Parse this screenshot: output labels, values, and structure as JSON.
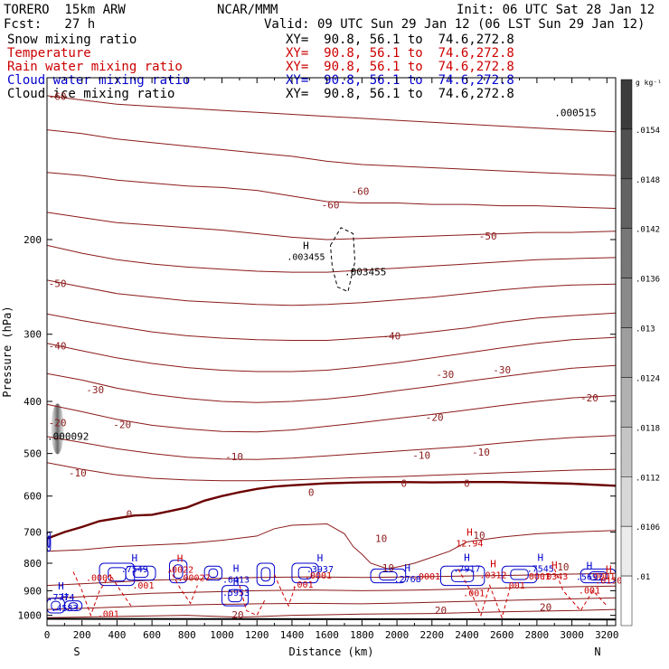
{
  "header": {
    "model": "TORERO  15km ARW",
    "center": "NCAR/MMM",
    "init": "Init: 06 UTC Sat 28 Jan 12",
    "fcst": "Fcst:   27 h",
    "valid": "Valid: 09 UTC Sun 29 Jan 12 (06 LST Sun 29 Jan 12)"
  },
  "fields": [
    {
      "name": "Snow mixing ratio",
      "xy": "XY=  90.8, 56.1 to  74.6,272.8",
      "color": "#000000",
      "xycolor": "#000000"
    },
    {
      "name": "Temperature",
      "xy": "XY=  90.8, 56.1 to  74.6,272.8",
      "color": "#cc0000",
      "xycolor": "#cc0000"
    },
    {
      "name": "Rain water mixing ratio",
      "xy": "XY=  90.8, 56.1 to  74.6,272.8",
      "color": "#cc0000",
      "xycolor": "#cc0000"
    },
    {
      "name": "Cloud water mixing ratio",
      "xy": "XY=  90.8, 56.1 to  74.6,272.8",
      "color": "#0000cc",
      "xycolor": "#0000cc"
    },
    {
      "name": "Cloud ice mixing ratio",
      "xy": "XY=  90.8, 56.1 to  74.6,272.8",
      "color": "#000000",
      "xycolor": "#000000"
    }
  ],
  "chart_data": {
    "type": "cross-section",
    "xlabel": "Distance (km)",
    "ylabel": "Pressure (hPa)",
    "x_ticks": [
      0,
      100,
      200,
      300,
      400,
      500,
      600,
      700,
      800,
      900,
      1000,
      1100,
      1200,
      1300,
      1400,
      1500,
      1600,
      1700,
      1800,
      1900,
      2000,
      2100,
      2200,
      2300,
      2400,
      2500,
      2600,
      2700,
      2800,
      2900,
      3000,
      3100,
      3200
    ],
    "x_tick_labels": [
      "0",
      "200",
      "400",
      "600",
      "800",
      "1000",
      "1200",
      "1400",
      "1600",
      "1800",
      "2000",
      "2200",
      "2400",
      "2600",
      "2800",
      "3000",
      "3200"
    ],
    "xlim": [
      0,
      3250
    ],
    "y_ticks": [
      200,
      300,
      400,
      500,
      600,
      700,
      800,
      900,
      1000
    ],
    "ylim": [
      100,
      1045
    ],
    "y_scale": "log",
    "endpoint_labels": {
      "left": "S",
      "right": "N"
    },
    "colorbar": {
      "unit": "g kg⁻¹",
      "tick_labels": [
        ".0154",
        ".0148",
        ".0142",
        ".0136",
        ".013",
        ".0124",
        ".0118",
        ".0112",
        ".0106",
        ".01"
      ]
    },
    "temperature_labels": [
      {
        "x": 60,
        "p": 110,
        "text": "-60"
      },
      {
        "x": 1620,
        "p": 175,
        "text": "-60"
      },
      {
        "x": 1790,
        "p": 165,
        "text": "-60"
      },
      {
        "x": 60,
        "p": 245,
        "text": "-50"
      },
      {
        "x": 2520,
        "p": 200,
        "text": "-50"
      },
      {
        "x": 60,
        "p": 320,
        "text": "-40"
      },
      {
        "x": 1970,
        "p": 307,
        "text": "-40"
      },
      {
        "x": 275,
        "p": 386,
        "text": "-30"
      },
      {
        "x": 2275,
        "p": 362,
        "text": "-30"
      },
      {
        "x": 2600,
        "p": 355,
        "text": "-30"
      },
      {
        "x": 60,
        "p": 445,
        "text": "-20"
      },
      {
        "x": 430,
        "p": 448,
        "text": "-20"
      },
      {
        "x": 2215,
        "p": 435,
        "text": "-20"
      },
      {
        "x": 3100,
        "p": 400,
        "text": "-20"
      },
      {
        "x": 175,
        "p": 552,
        "text": "-10"
      },
      {
        "x": 1070,
        "p": 514,
        "text": "-10"
      },
      {
        "x": 2140,
        "p": 511,
        "text": "-10"
      },
      {
        "x": 2480,
        "p": 505,
        "text": "-10"
      },
      {
        "x": 470,
        "p": 658,
        "text": "0"
      },
      {
        "x": 1510,
        "p": 600,
        "text": "0"
      },
      {
        "x": 2040,
        "p": 577,
        "text": "0"
      },
      {
        "x": 2400,
        "p": 577,
        "text": "0"
      },
      {
        "x": 1910,
        "p": 731,
        "text": "10"
      },
      {
        "x": 1950,
        "p": 829,
        "text": "10"
      },
      {
        "x": 2470,
        "p": 720,
        "text": "10"
      },
      {
        "x": 2950,
        "p": 825,
        "text": "10"
      },
      {
        "x": 1090,
        "p": 1013,
        "text": "20"
      },
      {
        "x": 2250,
        "p": 993,
        "text": "20"
      },
      {
        "x": 2850,
        "p": 980,
        "text": "20"
      }
    ],
    "snow_labels": [
      {
        "x": 2900,
        "p": 118,
        "text": ".000515"
      },
      {
        "x": 1700,
        "p": 233,
        "text": ".003455"
      },
      {
        "x": 0,
        "p": 472,
        "text": ".000092"
      }
    ],
    "cloud_labels": [
      {
        "x": 300,
        "p": 862,
        "text": ".0001"
      },
      {
        "x": 840,
        "p": 862,
        "text": ".00027"
      },
      {
        "x": 1550,
        "p": 855,
        "text": ".0001"
      },
      {
        "x": 2170,
        "p": 857,
        "text": ".0001"
      },
      {
        "x": 2800,
        "p": 858,
        "text": ".0001"
      },
      {
        "x": 3170,
        "p": 857,
        "text": ".0001"
      }
    ],
    "rain_labels": [
      {
        "x": 550,
        "p": 892,
        "text": ".001"
      },
      {
        "x": 1460,
        "p": 888,
        "text": ".001"
      },
      {
        "x": 2440,
        "p": 921,
        "text": ".001"
      },
      {
        "x": 2670,
        "p": 892,
        "text": ".001"
      },
      {
        "x": 3100,
        "p": 910,
        "text": ".001"
      },
      {
        "x": 350,
        "p": 1007,
        "text": ".001"
      }
    ],
    "maxima": [
      {
        "x": 1480,
        "p": 218,
        "label": "H",
        "value": ".003455",
        "color": "#000000"
      },
      {
        "x": 2415,
        "p": 745,
        "label": "H",
        "value": "12.94",
        "color": "#cc0000"
      },
      {
        "x": 500,
        "p": 832,
        "label": "H",
        "value": ".7549",
        "color": "#0000cc"
      },
      {
        "x": 1560,
        "p": 831,
        "label": "H",
        "value": ".3937",
        "color": "#0000cc"
      },
      {
        "x": 1080,
        "p": 870,
        "label": "H",
        "value": ".6413",
        "color": "#0000cc"
      },
      {
        "x": 2400,
        "p": 830,
        "label": "H",
        "value": ".7917",
        "color": "#0000cc"
      },
      {
        "x": 2820,
        "p": 830,
        "label": "H",
        "value": ".7545",
        "color": "#0000cc"
      },
      {
        "x": 2060,
        "p": 867,
        "label": "H",
        "value": ".2768",
        "color": "#0000cc"
      },
      {
        "x": 3100,
        "p": 860,
        "label": "H",
        "value": ".5697",
        "color": "#0000cc"
      },
      {
        "x": 1080,
        "p": 920,
        "label": "H",
        "value": ".5953",
        "color": "#0000cc"
      },
      {
        "x": 80,
        "p": 937,
        "label": "H",
        "value": ".7774",
        "color": "#0000cc"
      },
      {
        "x": 100,
        "p": 982,
        "label": "H",
        "value": ".4583",
        "color": "#0000cc"
      },
      {
        "x": 2550,
        "p": 853,
        "label": "H",
        "value": ".0312",
        "color": "#cc0000"
      },
      {
        "x": 2900,
        "p": 857,
        "label": "H",
        "value": ".0343",
        "color": "#cc0000"
      },
      {
        "x": 3210,
        "p": 873,
        "label": "H",
        "value": ".0130",
        "color": "#cc0000"
      },
      {
        "x": 760,
        "p": 833,
        "label": "H",
        "value": ".0022",
        "color": "#cc0000"
      }
    ]
  }
}
